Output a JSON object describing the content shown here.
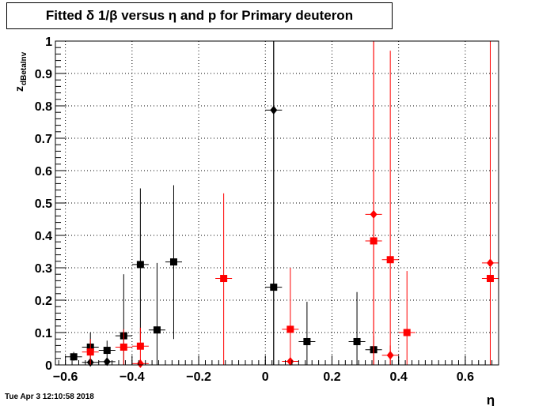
{
  "title": "Fitted δ 1/β versus η and p for Primary deuteron",
  "timestamp": "Tue Apr  3 12:10:58 2018",
  "chart_data": {
    "type": "scatter",
    "title": "Fitted δ 1/β versus η and p for Primary deuteron",
    "xlabel": "η",
    "ylabel": "z",
    "ylabel_subscript": "dBetaInv",
    "xlim": [
      -0.63,
      0.7
    ],
    "ylim": [
      0,
      1
    ],
    "xticks": [
      -0.6,
      -0.4,
      -0.2,
      0,
      0.2,
      0.4,
      0.6
    ],
    "xtick_labels": [
      "−0.6",
      "−0.4",
      "−0.2",
      "0",
      "0.2",
      "0.4",
      "0.6"
    ],
    "yticks": [
      0,
      0.1,
      0.2,
      0.3,
      0.4,
      0.5,
      0.6,
      0.7,
      0.8,
      0.9,
      1
    ],
    "ytick_labels": [
      "0",
      "0.1",
      "0.2",
      "0.3",
      "0.4",
      "0.5",
      "0.6",
      "0.7",
      "0.8",
      "0.9",
      "1"
    ],
    "grid": true,
    "colors": {
      "black": "#000000",
      "red": "#ff0000"
    },
    "series": [
      {
        "color": "#000000",
        "marker": "square",
        "points": [
          {
            "x": -0.575,
            "y": 0.025,
            "lo": 0.013,
            "hi": 0.04
          },
          {
            "x": -0.525,
            "y": 0.055,
            "lo": 0.0,
            "hi": 0.1
          },
          {
            "x": -0.475,
            "y": 0.045,
            "lo": 0.015,
            "hi": 0.075
          },
          {
            "x": -0.425,
            "y": 0.09,
            "lo": 0.0,
            "hi": 0.28
          },
          {
            "x": -0.375,
            "y": 0.31,
            "lo": 0.075,
            "hi": 0.545
          },
          {
            "x": -0.325,
            "y": 0.108,
            "lo": 0.0,
            "hi": 0.315
          },
          {
            "x": -0.275,
            "y": 0.318,
            "lo": 0.08,
            "hi": 0.555
          },
          {
            "x": 0.025,
            "y": 0.24,
            "lo": 0.0,
            "hi": 1.0
          },
          {
            "x": 0.125,
            "y": 0.072,
            "lo": 0.0,
            "hi": 0.195
          },
          {
            "x": 0.275,
            "y": 0.072,
            "lo": 0.0,
            "hi": 0.225
          },
          {
            "x": 0.325,
            "y": 0.047,
            "lo": 0.0,
            "hi": 0.09
          }
        ]
      },
      {
        "color": "#000000",
        "marker": "diamond",
        "points": [
          {
            "x": -0.525,
            "y": 0.008,
            "lo": 0.0,
            "hi": 0.015
          },
          {
            "x": -0.475,
            "y": 0.01,
            "lo": 0.0,
            "hi": 0.02
          },
          {
            "x": 0.025,
            "y": 0.787,
            "lo": 0.0,
            "hi": 1.0
          }
        ]
      },
      {
        "color": "#ff0000",
        "marker": "square",
        "points": [
          {
            "x": -0.525,
            "y": 0.04,
            "lo": 0.0,
            "hi": 0.08
          },
          {
            "x": -0.425,
            "y": 0.055,
            "lo": 0.0,
            "hi": 0.11
          },
          {
            "x": -0.375,
            "y": 0.058,
            "lo": 0.0,
            "hi": 0.115
          },
          {
            "x": -0.125,
            "y": 0.267,
            "lo": 0.0,
            "hi": 0.53
          },
          {
            "x": 0.075,
            "y": 0.11,
            "lo": 0.0,
            "hi": 0.3
          },
          {
            "x": 0.325,
            "y": 0.383,
            "lo": 0.0,
            "hi": 1.0
          },
          {
            "x": 0.375,
            "y": 0.325,
            "lo": 0.0,
            "hi": 0.97
          },
          {
            "x": 0.425,
            "y": 0.1,
            "lo": 0.0,
            "hi": 0.29
          },
          {
            "x": 0.675,
            "y": 0.267,
            "lo": 0.0,
            "hi": 1.0
          }
        ]
      },
      {
        "color": "#ff0000",
        "marker": "diamond",
        "points": [
          {
            "x": -0.375,
            "y": 0.004,
            "lo": 0.0,
            "hi": 0.008
          },
          {
            "x": 0.075,
            "y": 0.011,
            "lo": 0.0,
            "hi": 0.02
          },
          {
            "x": 0.325,
            "y": 0.465,
            "lo": 0.0,
            "hi": 1.0
          },
          {
            "x": 0.375,
            "y": 0.03,
            "lo": 0.0,
            "hi": 0.06
          },
          {
            "x": 0.675,
            "y": 0.315,
            "lo": 0.0,
            "hi": 1.0
          }
        ]
      }
    ]
  }
}
